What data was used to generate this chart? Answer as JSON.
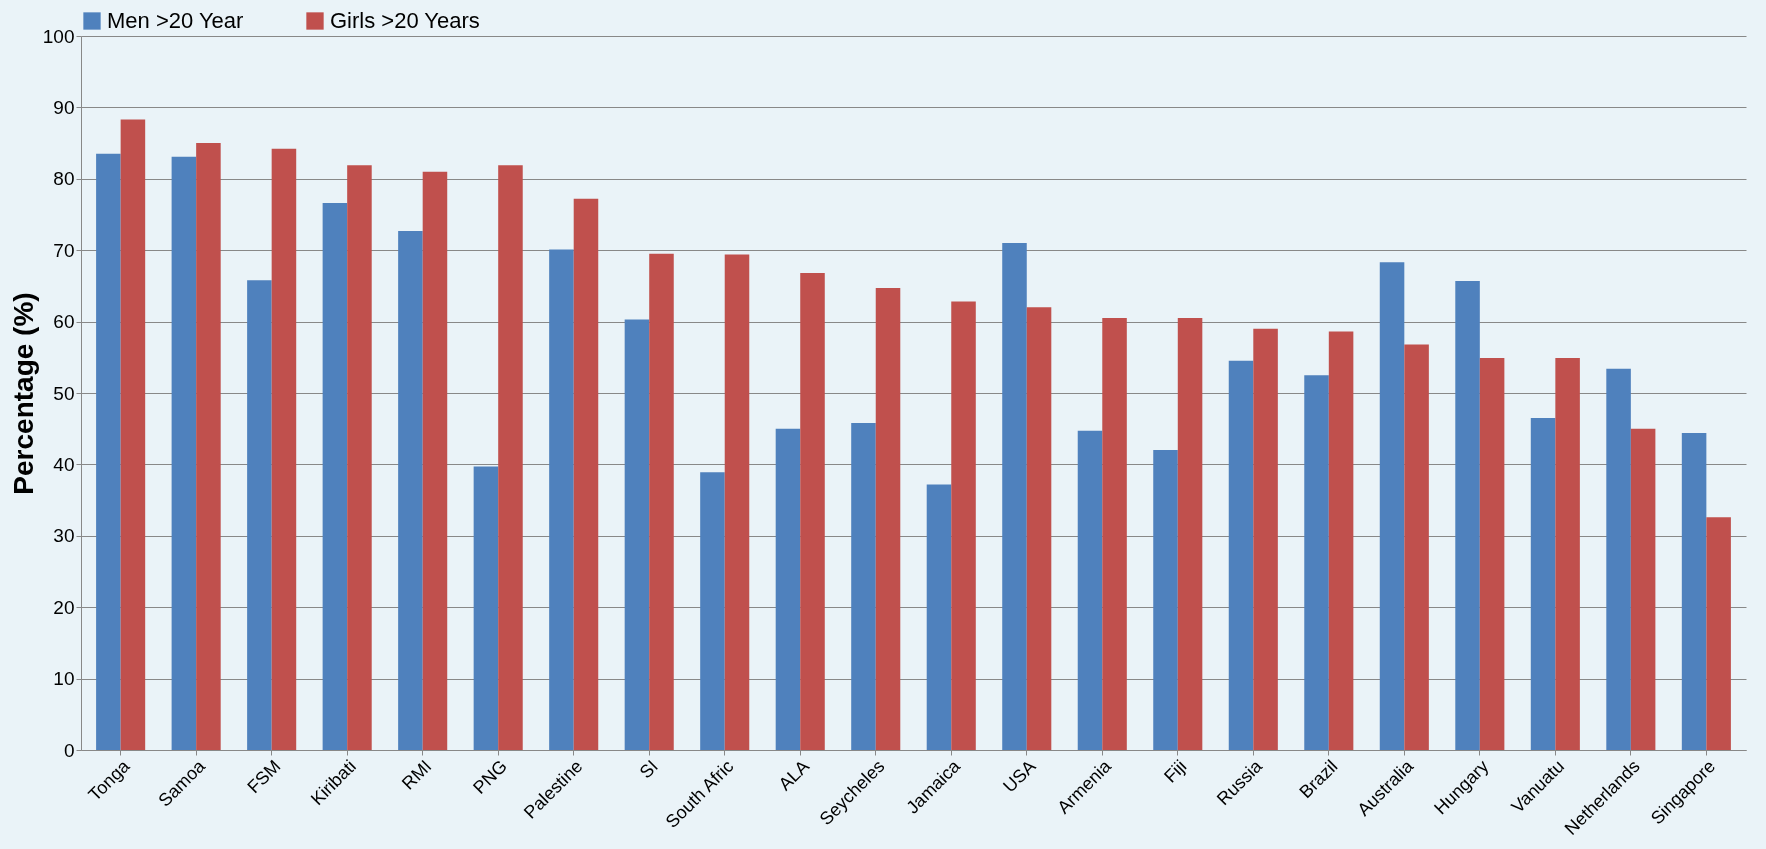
{
  "chart_data": {
    "type": "bar",
    "ylabel": "Percentage (%)",
    "categories": [
      "Tonga",
      "Samoa",
      "FSM",
      "Kiribati",
      "RMI",
      "PNG",
      "Palestine",
      "SI",
      "South Afric",
      "ALA",
      "Seycheles",
      "Jamaica",
      "USA",
      "Armenia",
      "Fiji",
      "Russia",
      "Brazil",
      "Australia",
      "Hungary",
      "Vanuatu",
      "Netherlands",
      "Singapore"
    ],
    "series": [
      {
        "name": "Men >20 Year",
        "color": "#4f81bd",
        "values": [
          83.5,
          83.1,
          65.8,
          76.6,
          72.7,
          39.7,
          70.1,
          60.3,
          38.9,
          45,
          45.8,
          37.2,
          71,
          44.7,
          42,
          54.5,
          52.5,
          68.3,
          65.7,
          46.5,
          53.4,
          44.4
        ]
      },
      {
        "name": "Girls >20 Years",
        "color": "#c0504d",
        "values": [
          88.3,
          85,
          84.2,
          81.9,
          81,
          81.9,
          77.2,
          69.5,
          69.4,
          66.8,
          64.7,
          62.8,
          62,
          60.5,
          60.5,
          59,
          58.6,
          56.8,
          54.9,
          54.9,
          45,
          32.6
        ]
      }
    ],
    "ylim": [
      0,
      100
    ],
    "yticks": [
      0,
      10,
      20,
      30,
      40,
      50,
      60,
      70,
      80,
      90,
      100
    ],
    "grid": "y",
    "legend": "top"
  }
}
